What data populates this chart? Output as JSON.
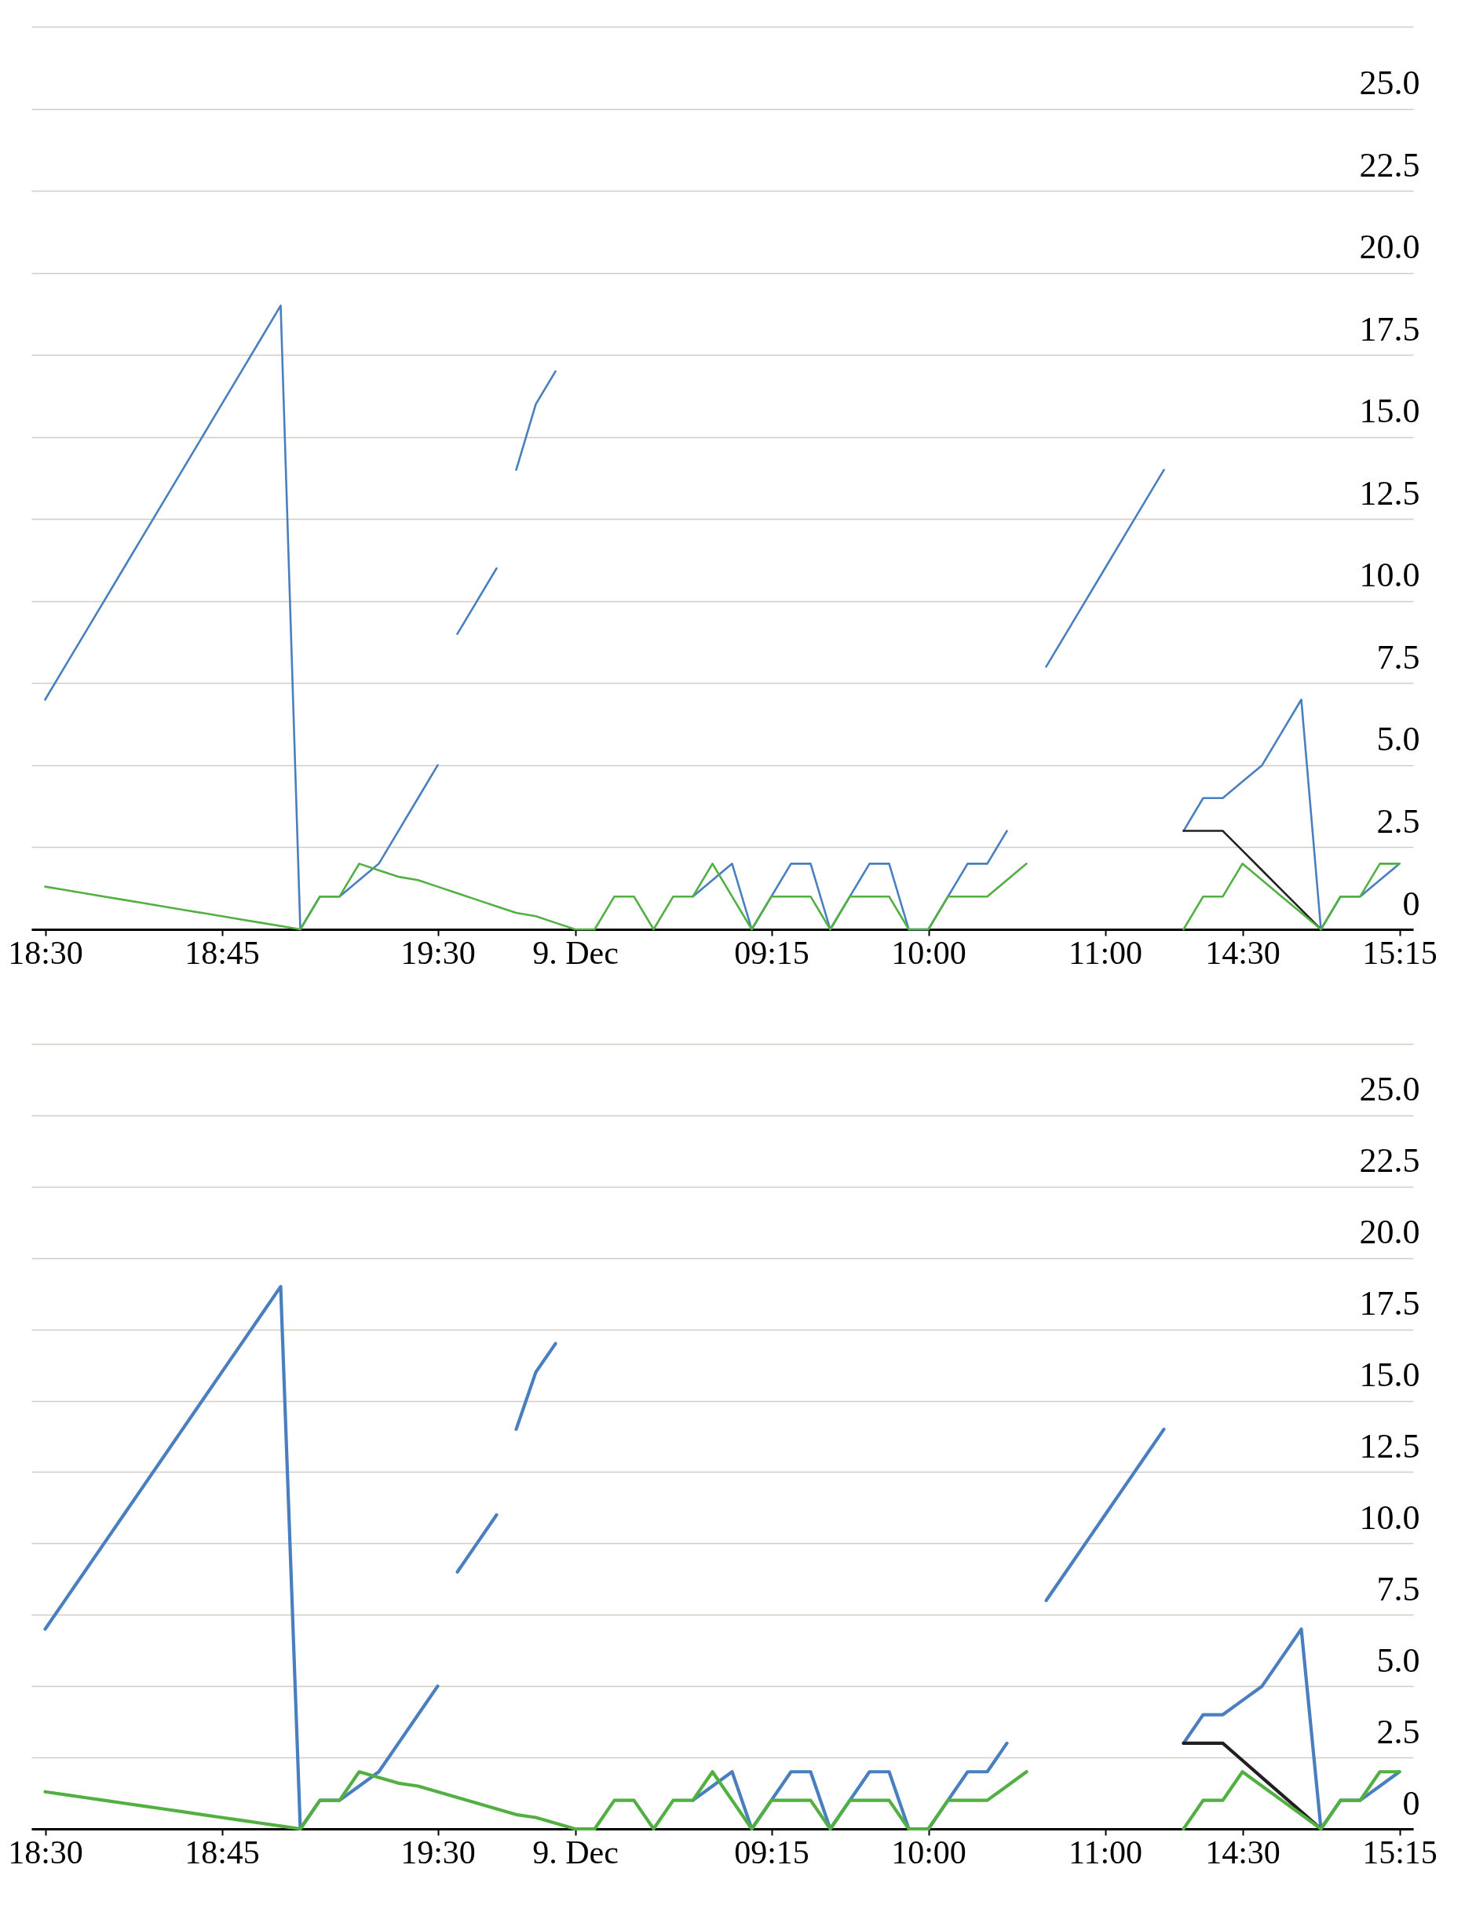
{
  "chart_data": [
    {
      "type": "line",
      "ylim": [
        0,
        27.5
      ],
      "categories": [
        "18:30",
        null,
        null,
        null,
        null,
        null,
        null,
        null,
        null,
        "18:45",
        null,
        null,
        null,
        null,
        null,
        null,
        null,
        null,
        null,
        null,
        "19:30",
        null,
        null,
        null,
        null,
        null,
        null,
        "9. Dec",
        null,
        null,
        null,
        null,
        null,
        null,
        null,
        null,
        null,
        "09:15",
        null,
        null,
        null,
        null,
        null,
        null,
        null,
        "10:00",
        null,
        null,
        null,
        null,
        null,
        null,
        null,
        null,
        "11:00",
        null,
        null,
        null,
        null,
        null,
        null,
        "14:30",
        null,
        null,
        null,
        null,
        null,
        null,
        null,
        "15:15"
      ],
      "yticks": [
        0,
        2.5,
        {
          "value": 5,
          "label": "5.0"
        },
        7.5,
        {
          "value": 10,
          "label": "10.0"
        },
        12.5,
        {
          "value": 15,
          "label": "15.0"
        },
        17.5,
        {
          "value": 20,
          "label": "20.0"
        },
        22.5,
        {
          "value": 25,
          "label": "25.0"
        },
        {
          "value": 27.5,
          "label": null
        }
      ],
      "grid": "y",
      "series": [
        {
          "color": "#4a7fbf",
          "values": [
            7,
            8,
            9,
            10,
            11,
            12,
            13,
            14,
            15,
            16,
            17,
            18,
            19,
            0,
            1,
            1,
            1.5,
            2,
            3,
            4,
            5,
            null,
            null,
            null,
            null,
            null,
            null,
            null,
            null,
            null,
            null,
            null,
            null,
            null,
            null,
            null,
            null,
            null,
            null,
            null,
            null,
            null,
            null,
            null,
            null,
            null,
            null,
            null,
            null,
            null,
            null,
            null,
            null,
            null,
            null,
            null,
            null,
            null,
            null,
            null,
            null,
            null,
            null,
            null,
            null,
            null,
            null,
            null,
            null,
            null
          ]
        },
        {
          "color": "#4a7fbf",
          "values": [
            null,
            null,
            null,
            null,
            null,
            null,
            null,
            null,
            null,
            null,
            null,
            null,
            null,
            null,
            null,
            null,
            null,
            null,
            null,
            null,
            null,
            9,
            10,
            11,
            null,
            null,
            null,
            null,
            null,
            null,
            null,
            null,
            null,
            null,
            null,
            null,
            null,
            null,
            null,
            null,
            null,
            null,
            null,
            null,
            null,
            null,
            null,
            null,
            null,
            null,
            null,
            null,
            null,
            null,
            null,
            null,
            null,
            null,
            null,
            null,
            null,
            null,
            null,
            null,
            null,
            null,
            null,
            null,
            null,
            null
          ]
        },
        {
          "color": "#4a7fbf",
          "values": [
            null,
            null,
            null,
            null,
            null,
            null,
            null,
            null,
            null,
            null,
            null,
            null,
            null,
            null,
            null,
            null,
            null,
            null,
            null,
            null,
            null,
            null,
            null,
            null,
            14,
            16,
            17,
            null,
            null,
            null,
            null,
            null,
            null,
            null,
            null,
            null,
            null,
            null,
            null,
            null,
            null,
            null,
            null,
            null,
            null,
            null,
            null,
            null,
            null,
            null,
            null,
            null,
            null,
            null,
            null,
            null,
            null,
            null,
            null,
            null,
            null,
            null,
            null,
            null,
            null,
            null,
            null,
            null,
            null,
            null
          ]
        },
        {
          "color": "#4a7fbf",
          "values": [
            null,
            null,
            null,
            null,
            null,
            null,
            null,
            null,
            null,
            null,
            null,
            null,
            null,
            null,
            null,
            null,
            null,
            null,
            null,
            null,
            null,
            null,
            null,
            null,
            null,
            null,
            null,
            null,
            null,
            null,
            null,
            null,
            null,
            1,
            1.5,
            2,
            0,
            1,
            2,
            2,
            0,
            1,
            2,
            2,
            0,
            0,
            1,
            2,
            2,
            3,
            null,
            null,
            null,
            null,
            null,
            null,
            null,
            null,
            null,
            null,
            null,
            null,
            null,
            null,
            null,
            null,
            null,
            null,
            null,
            null
          ]
        },
        {
          "color": "#4a7fbf",
          "values": [
            null,
            null,
            null,
            null,
            null,
            null,
            null,
            null,
            null,
            null,
            null,
            null,
            null,
            null,
            null,
            null,
            null,
            null,
            null,
            null,
            null,
            null,
            null,
            null,
            null,
            null,
            null,
            null,
            null,
            null,
            null,
            null,
            null,
            null,
            null,
            null,
            null,
            null,
            null,
            null,
            null,
            null,
            null,
            null,
            null,
            null,
            null,
            null,
            null,
            null,
            null,
            8,
            9,
            10,
            11,
            12,
            13,
            14,
            null,
            null,
            null,
            null,
            null,
            null,
            null,
            null,
            null,
            null,
            null,
            null
          ]
        },
        {
          "color": "#4a7fbf",
          "values": [
            null,
            null,
            null,
            null,
            null,
            null,
            null,
            null,
            null,
            null,
            null,
            null,
            null,
            null,
            null,
            null,
            null,
            null,
            null,
            null,
            null,
            null,
            null,
            null,
            null,
            null,
            null,
            null,
            null,
            null,
            null,
            null,
            null,
            null,
            null,
            null,
            null,
            null,
            null,
            null,
            null,
            null,
            null,
            null,
            null,
            null,
            null,
            null,
            null,
            null,
            null,
            null,
            null,
            null,
            null,
            null,
            null,
            null,
            3,
            4,
            4,
            4.5,
            5,
            6,
            7,
            0,
            1,
            1,
            1.5,
            2
          ]
        },
        {
          "color": "#231f20",
          "values": [
            null,
            null,
            null,
            null,
            null,
            null,
            null,
            null,
            null,
            null,
            null,
            null,
            null,
            null,
            null,
            null,
            null,
            null,
            null,
            null,
            null,
            null,
            null,
            null,
            null,
            null,
            null,
            null,
            null,
            null,
            null,
            null,
            null,
            null,
            null,
            null,
            null,
            null,
            null,
            null,
            null,
            null,
            null,
            null,
            null,
            null,
            null,
            null,
            null,
            null,
            null,
            null,
            null,
            null,
            null,
            null,
            null,
            null,
            3,
            3,
            3,
            2.4,
            1.8,
            1.2,
            0.6,
            0,
            null,
            null,
            null,
            null
          ]
        },
        {
          "color": "#52b043",
          "values": [
            1.3,
            1.2,
            1.1,
            1.0,
            0.9,
            0.8,
            0.7,
            0.6,
            0.5,
            0.4,
            0.3,
            0.2,
            0.1,
            0,
            1,
            1,
            2,
            1.8,
            1.6,
            1.5,
            1.3,
            1.1,
            0.9,
            0.7,
            0.5,
            0.4,
            0.2,
            0,
            0,
            1,
            1,
            0,
            1,
            1,
            2,
            1,
            0,
            1,
            1,
            1,
            0,
            1,
            1,
            1,
            0,
            0,
            1,
            1,
            1,
            1.5,
            2,
            null,
            null,
            null,
            null,
            null,
            null,
            null,
            null,
            null,
            null,
            null,
            null,
            null,
            null,
            null,
            null,
            null,
            null,
            null
          ]
        },
        {
          "color": "#52b043",
          "values": [
            null,
            null,
            null,
            null,
            null,
            null,
            null,
            null,
            null,
            null,
            null,
            null,
            null,
            null,
            null,
            null,
            null,
            null,
            null,
            null,
            null,
            null,
            null,
            null,
            null,
            null,
            null,
            null,
            null,
            null,
            null,
            null,
            null,
            null,
            null,
            null,
            null,
            null,
            null,
            null,
            null,
            null,
            null,
            null,
            null,
            null,
            null,
            null,
            null,
            null,
            null,
            null,
            null,
            null,
            null,
            null,
            null,
            null,
            0,
            1,
            1,
            2,
            1.5,
            1,
            0.5,
            0,
            1,
            1,
            2,
            2
          ]
        }
      ]
    },
    {
      "type": "line",
      "ylim": [
        0,
        27.5
      ],
      "categories": [
        "18:30",
        null,
        null,
        null,
        null,
        null,
        null,
        null,
        null,
        "18:45",
        null,
        null,
        null,
        null,
        null,
        null,
        null,
        null,
        null,
        null,
        "19:30",
        null,
        null,
        null,
        null,
        null,
        null,
        "9. Dec",
        null,
        null,
        null,
        null,
        null,
        null,
        null,
        null,
        null,
        "09:15",
        null,
        null,
        null,
        null,
        null,
        null,
        null,
        "10:00",
        null,
        null,
        null,
        null,
        null,
        null,
        null,
        null,
        "11:00",
        null,
        null,
        null,
        null,
        null,
        null,
        "14:30",
        null,
        null,
        null,
        null,
        null,
        null,
        null,
        "15:15"
      ],
      "yticks": [
        0,
        2.5,
        {
          "value": 5,
          "label": "5.0"
        },
        7.5,
        {
          "value": 10,
          "label": "10.0"
        },
        12.5,
        {
          "value": 15,
          "label": "15.0"
        },
        17.5,
        {
          "value": 20,
          "label": "20.0"
        },
        22.5,
        {
          "value": 25,
          "label": "25.0"
        },
        {
          "value": 27.5,
          "label": null
        }
      ],
      "grid": "y",
      "series": [
        {
          "color": "#4a7fbf",
          "values": [
            7,
            8,
            9,
            10,
            11,
            12,
            13,
            14,
            15,
            16,
            17,
            18,
            19,
            0,
            1,
            1,
            1.5,
            2,
            3,
            4,
            5,
            null,
            null,
            null,
            null,
            null,
            null,
            null,
            null,
            null,
            null,
            null,
            null,
            null,
            null,
            null,
            null,
            null,
            null,
            null,
            null,
            null,
            null,
            null,
            null,
            null,
            null,
            null,
            null,
            null,
            null,
            null,
            null,
            null,
            null,
            null,
            null,
            null,
            null,
            null,
            null,
            null,
            null,
            null,
            null,
            null,
            null,
            null,
            null,
            null
          ]
        },
        {
          "color": "#4a7fbf",
          "values": [
            null,
            null,
            null,
            null,
            null,
            null,
            null,
            null,
            null,
            null,
            null,
            null,
            null,
            null,
            null,
            null,
            null,
            null,
            null,
            null,
            null,
            9,
            10,
            11,
            null,
            null,
            null,
            null,
            null,
            null,
            null,
            null,
            null,
            null,
            null,
            null,
            null,
            null,
            null,
            null,
            null,
            null,
            null,
            null,
            null,
            null,
            null,
            null,
            null,
            null,
            null,
            null,
            null,
            null,
            null,
            null,
            null,
            null,
            null,
            null,
            null,
            null,
            null,
            null,
            null,
            null,
            null,
            null,
            null,
            null
          ]
        },
        {
          "color": "#4a7fbf",
          "values": [
            null,
            null,
            null,
            null,
            null,
            null,
            null,
            null,
            null,
            null,
            null,
            null,
            null,
            null,
            null,
            null,
            null,
            null,
            null,
            null,
            null,
            null,
            null,
            null,
            14,
            16,
            17,
            null,
            null,
            null,
            null,
            null,
            null,
            null,
            null,
            null,
            null,
            null,
            null,
            null,
            null,
            null,
            null,
            null,
            null,
            null,
            null,
            null,
            null,
            null,
            null,
            null,
            null,
            null,
            null,
            null,
            null,
            null,
            null,
            null,
            null,
            null,
            null,
            null,
            null,
            null,
            null,
            null,
            null,
            null
          ]
        },
        {
          "color": "#4a7fbf",
          "values": [
            null,
            null,
            null,
            null,
            null,
            null,
            null,
            null,
            null,
            null,
            null,
            null,
            null,
            null,
            null,
            null,
            null,
            null,
            null,
            null,
            null,
            null,
            null,
            null,
            null,
            null,
            null,
            null,
            null,
            null,
            null,
            null,
            null,
            1,
            1.5,
            2,
            0,
            1,
            2,
            2,
            0,
            1,
            2,
            2,
            0,
            0,
            1,
            2,
            2,
            3,
            null,
            null,
            null,
            null,
            null,
            null,
            null,
            null,
            null,
            null,
            null,
            null,
            null,
            null,
            null,
            null,
            null,
            null,
            null,
            null
          ]
        },
        {
          "color": "#4a7fbf",
          "values": [
            null,
            null,
            null,
            null,
            null,
            null,
            null,
            null,
            null,
            null,
            null,
            null,
            null,
            null,
            null,
            null,
            null,
            null,
            null,
            null,
            null,
            null,
            null,
            null,
            null,
            null,
            null,
            null,
            null,
            null,
            null,
            null,
            null,
            null,
            null,
            null,
            null,
            null,
            null,
            null,
            null,
            null,
            null,
            null,
            null,
            null,
            null,
            null,
            null,
            null,
            null,
            8,
            9,
            10,
            11,
            12,
            13,
            14,
            null,
            null,
            null,
            null,
            null,
            null,
            null,
            null,
            null,
            null,
            null,
            null
          ]
        },
        {
          "color": "#4a7fbf",
          "values": [
            null,
            null,
            null,
            null,
            null,
            null,
            null,
            null,
            null,
            null,
            null,
            null,
            null,
            null,
            null,
            null,
            null,
            null,
            null,
            null,
            null,
            null,
            null,
            null,
            null,
            null,
            null,
            null,
            null,
            null,
            null,
            null,
            null,
            null,
            null,
            null,
            null,
            null,
            null,
            null,
            null,
            null,
            null,
            null,
            null,
            null,
            null,
            null,
            null,
            null,
            null,
            null,
            null,
            null,
            null,
            null,
            null,
            null,
            3,
            4,
            4,
            4.5,
            5,
            6,
            7,
            0,
            1,
            1,
            1.5,
            2
          ]
        },
        {
          "color": "#231f20",
          "values": [
            null,
            null,
            null,
            null,
            null,
            null,
            null,
            null,
            null,
            null,
            null,
            null,
            null,
            null,
            null,
            null,
            null,
            null,
            null,
            null,
            null,
            null,
            null,
            null,
            null,
            null,
            null,
            null,
            null,
            null,
            null,
            null,
            null,
            null,
            null,
            null,
            null,
            null,
            null,
            null,
            null,
            null,
            null,
            null,
            null,
            null,
            null,
            null,
            null,
            null,
            null,
            null,
            null,
            null,
            null,
            null,
            null,
            null,
            3,
            3,
            3,
            2.4,
            1.8,
            1.2,
            0.6,
            0,
            null,
            null,
            null,
            null
          ]
        },
        {
          "color": "#52b043",
          "values": [
            1.3,
            1.2,
            1.1,
            1.0,
            0.9,
            0.8,
            0.7,
            0.6,
            0.5,
            0.4,
            0.3,
            0.2,
            0.1,
            0,
            1,
            1,
            2,
            1.8,
            1.6,
            1.5,
            1.3,
            1.1,
            0.9,
            0.7,
            0.5,
            0.4,
            0.2,
            0,
            0,
            1,
            1,
            0,
            1,
            1,
            2,
            1,
            0,
            1,
            1,
            1,
            0,
            1,
            1,
            1,
            0,
            0,
            1,
            1,
            1,
            1.5,
            2,
            null,
            null,
            null,
            null,
            null,
            null,
            null,
            null,
            null,
            null,
            null,
            null,
            null,
            null,
            null,
            null,
            null,
            null,
            null
          ]
        },
        {
          "color": "#52b043",
          "values": [
            null,
            null,
            null,
            null,
            null,
            null,
            null,
            null,
            null,
            null,
            null,
            null,
            null,
            null,
            null,
            null,
            null,
            null,
            null,
            null,
            null,
            null,
            null,
            null,
            null,
            null,
            null,
            null,
            null,
            null,
            null,
            null,
            null,
            null,
            null,
            null,
            null,
            null,
            null,
            null,
            null,
            null,
            null,
            null,
            null,
            null,
            null,
            null,
            null,
            null,
            null,
            null,
            null,
            null,
            null,
            null,
            null,
            null,
            0,
            1,
            1,
            2,
            1.5,
            1,
            0.5,
            0,
            1,
            1,
            2,
            2
          ]
        }
      ]
    }
  ]
}
